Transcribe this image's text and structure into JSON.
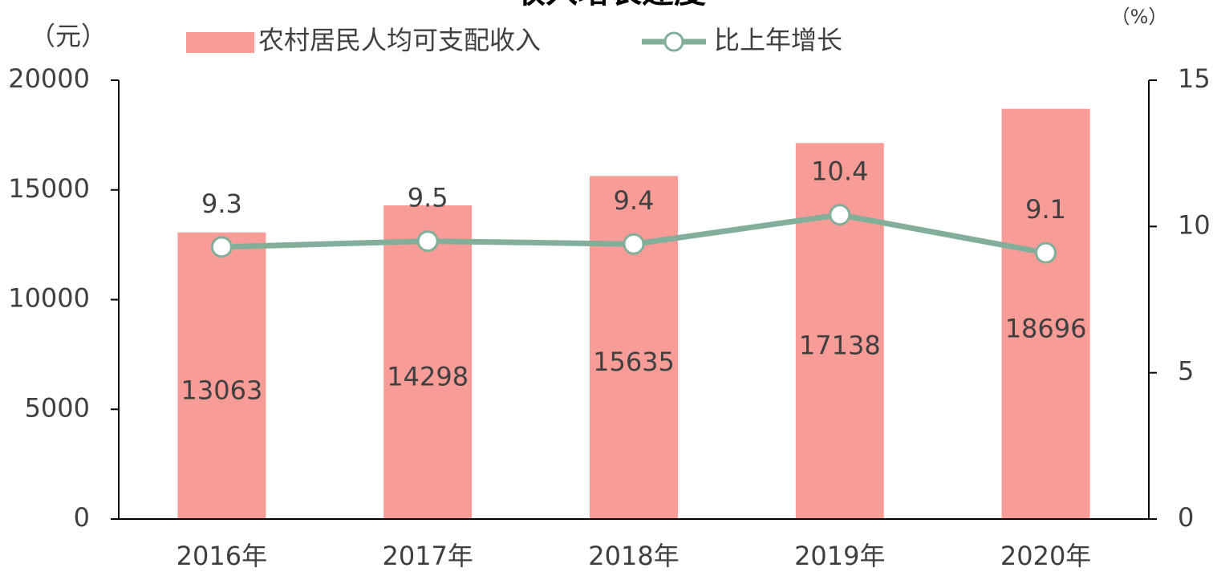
{
  "chart_data": {
    "type": "bar-line",
    "title": "收入增长速度",
    "y_unit": "（元）",
    "y2_unit": "（%）",
    "categories": [
      "2016年",
      "2017年",
      "2018年",
      "2019年",
      "2020年"
    ],
    "series": [
      {
        "name": "农村居民人均可支配收入",
        "color": "#f89c98",
        "type": "bar",
        "values": [
          13063,
          14298,
          15635,
          17138,
          18696
        ]
      },
      {
        "name": "比上年增长",
        "color": "#82ae9a",
        "type": "line",
        "axis": "y2",
        "values": [
          9.3,
          9.5,
          9.4,
          10.4,
          9.1
        ]
      }
    ],
    "ylim": [
      0,
      20000
    ],
    "yticks": [
      0,
      5000,
      10000,
      15000,
      20000
    ],
    "y2lim": [
      0,
      15
    ],
    "y2ticks": [
      0,
      5,
      10,
      15
    ]
  }
}
